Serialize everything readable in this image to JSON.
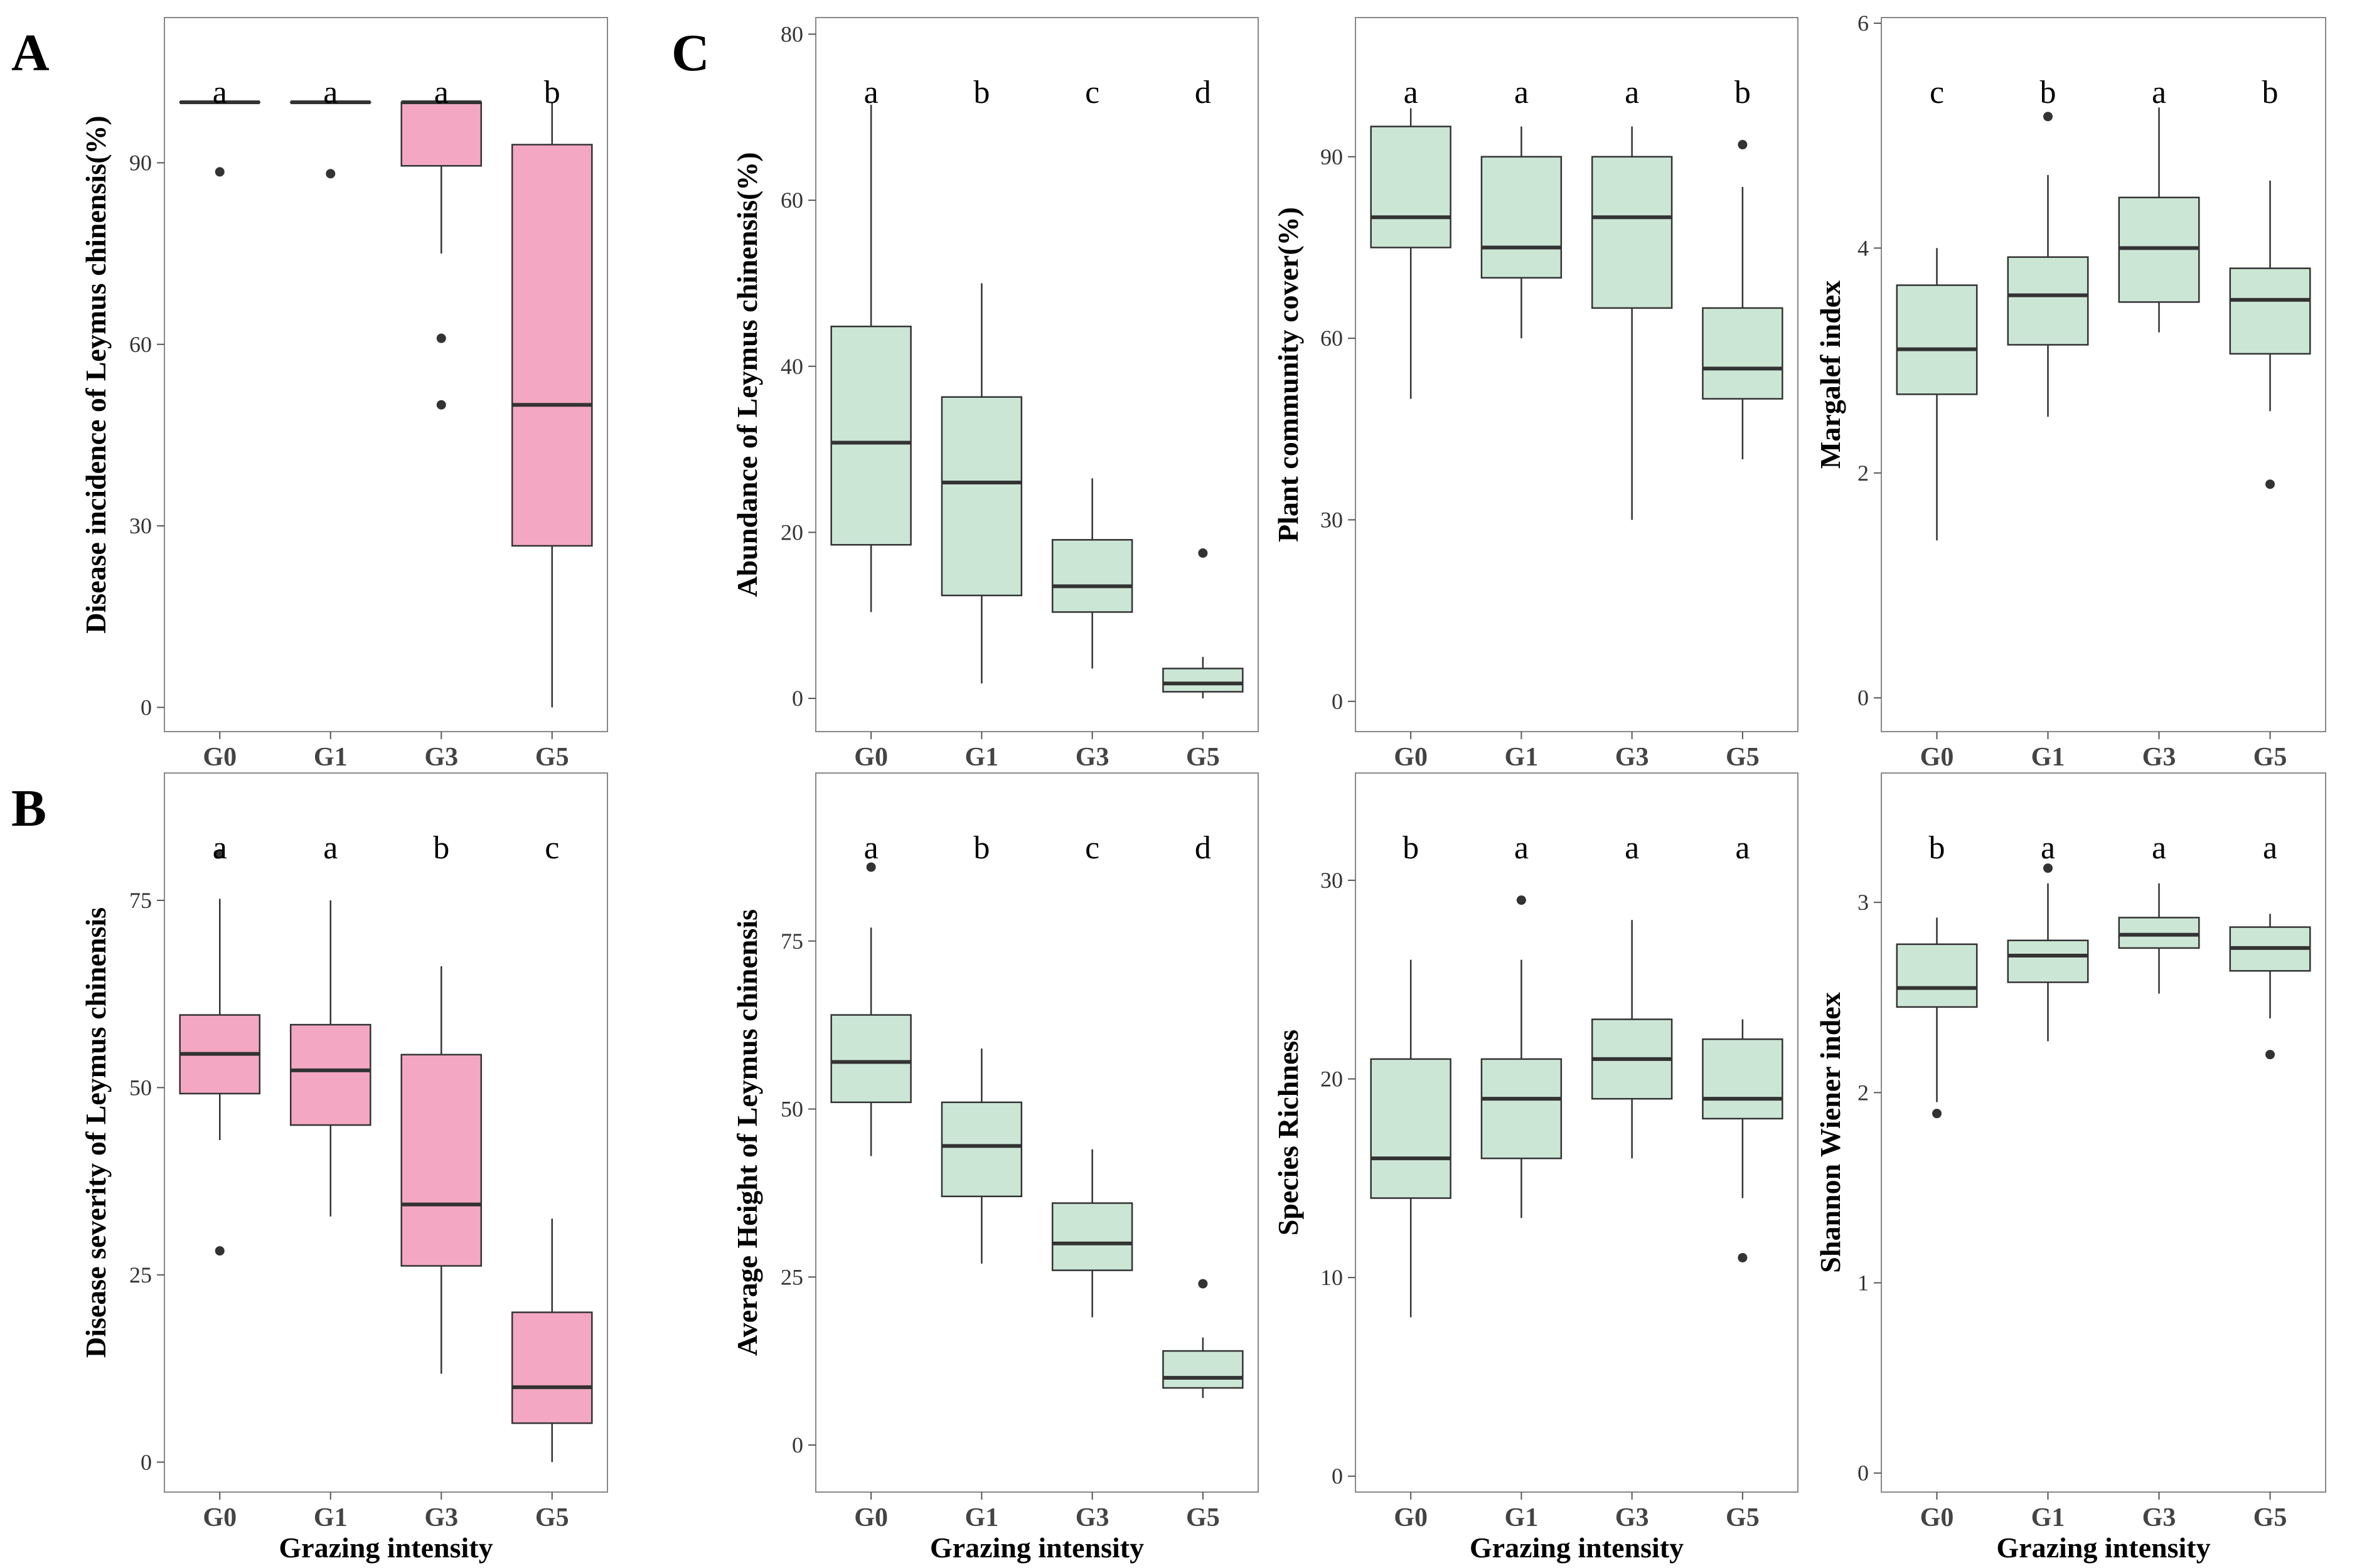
{
  "colors": {
    "pink_fill": "#f4a7c2",
    "green_fill": "#cce6d6",
    "stroke": "#333333",
    "frame": "#888888"
  },
  "panel_letters": [
    "A",
    "B",
    "C"
  ],
  "chart_data": [
    {
      "id": "A",
      "type": "box",
      "fill": "pink",
      "ylabel": "Disease incidence of Leymus chinensis(%)",
      "xlabel": "",
      "categories": [
        "G0",
        "G1",
        "G3",
        "G5"
      ],
      "ylim": [
        -4,
        114
      ],
      "yticks": [
        0,
        30,
        60,
        90
      ],
      "boxes": [
        {
          "q1": 100,
          "median": 100,
          "q3": 100,
          "wlo": 100,
          "whi": 100,
          "outliers": [
            88.5
          ]
        },
        {
          "q1": 100,
          "median": 100,
          "q3": 100,
          "wlo": 100,
          "whi": 100,
          "outliers": [
            88.2
          ]
        },
        {
          "q1": 89.5,
          "median": 100,
          "q3": 100,
          "wlo": 75,
          "whi": 100,
          "outliers": [
            61,
            50
          ]
        },
        {
          "q1": 26.7,
          "median": 50,
          "q3": 93,
          "wlo": 0,
          "whi": 100,
          "outliers": []
        }
      ],
      "letters": [
        "a",
        "a",
        "a",
        "b"
      ]
    },
    {
      "id": "C1",
      "type": "box",
      "fill": "green",
      "ylabel": "Abundance of Leymus chinensis(%)",
      "xlabel": "",
      "categories": [
        "G0",
        "G1",
        "G3",
        "G5"
      ],
      "ylim": [
        -4,
        82
      ],
      "yticks": [
        0,
        20,
        40,
        60,
        80
      ],
      "boxes": [
        {
          "q1": 18.5,
          "median": 30.8,
          "q3": 44.8,
          "wlo": 10.4,
          "whi": 71.5,
          "outliers": []
        },
        {
          "q1": 12.4,
          "median": 26,
          "q3": 36.3,
          "wlo": 1.8,
          "whi": 50,
          "outliers": []
        },
        {
          "q1": 10.4,
          "median": 13.5,
          "q3": 19.1,
          "wlo": 3.6,
          "whi": 26.5,
          "outliers": []
        },
        {
          "q1": 0.8,
          "median": 1.8,
          "q3": 3.6,
          "wlo": 0,
          "whi": 5,
          "outliers": [
            17.5
          ]
        }
      ],
      "letters": [
        "a",
        "b",
        "c",
        "d"
      ]
    },
    {
      "id": "C2",
      "type": "box",
      "fill": "green",
      "ylabel": "Plant community cover(%)",
      "xlabel": "",
      "categories": [
        "G0",
        "G1",
        "G3",
        "G5"
      ],
      "ylim": [
        -5,
        113
      ],
      "yticks": [
        0,
        30,
        60,
        90
      ],
      "boxes": [
        {
          "q1": 75,
          "median": 80,
          "q3": 95,
          "wlo": 50,
          "whi": 98,
          "outliers": []
        },
        {
          "q1": 70,
          "median": 75,
          "q3": 90,
          "wlo": 60,
          "whi": 95,
          "outliers": []
        },
        {
          "q1": 65,
          "median": 80,
          "q3": 90,
          "wlo": 30,
          "whi": 95,
          "outliers": []
        },
        {
          "q1": 50,
          "median": 55,
          "q3": 65,
          "wlo": 40,
          "whi": 85,
          "outliers": [
            92
          ]
        }
      ],
      "letters": [
        "a",
        "a",
        "a",
        "b"
      ]
    },
    {
      "id": "C3",
      "type": "box",
      "fill": "green",
      "ylabel": "Margalef index",
      "xlabel": "",
      "categories": [
        "G0",
        "G1",
        "G3",
        "G5"
      ],
      "ylim": [
        -0.3,
        6.05
      ],
      "yticks": [
        0,
        2,
        4,
        6
      ],
      "boxes": [
        {
          "q1": 2.7,
          "median": 3.1,
          "q3": 3.67,
          "wlo": 1.4,
          "whi": 4.0,
          "outliers": []
        },
        {
          "q1": 3.14,
          "median": 3.58,
          "q3": 3.92,
          "wlo": 2.5,
          "whi": 4.65,
          "outliers": [
            5.17
          ]
        },
        {
          "q1": 3.52,
          "median": 4.0,
          "q3": 4.45,
          "wlo": 3.25,
          "whi": 5.25,
          "outliers": []
        },
        {
          "q1": 3.06,
          "median": 3.54,
          "q3": 3.82,
          "wlo": 2.55,
          "whi": 4.6,
          "outliers": [
            1.9
          ]
        }
      ],
      "letters": [
        "c",
        "b",
        "a",
        "b"
      ]
    },
    {
      "id": "B",
      "type": "box",
      "fill": "pink",
      "ylabel": "Disease severity of Leymus chinensis",
      "xlabel": "Grazing intensity",
      "categories": [
        "G0",
        "G1",
        "G3",
        "G5"
      ],
      "ylim": [
        -4,
        92
      ],
      "yticks": [
        0,
        25,
        50,
        75
      ],
      "boxes": [
        {
          "q1": 49.2,
          "median": 54.5,
          "q3": 59.7,
          "wlo": 43,
          "whi": 75.2,
          "outliers": [
            81.2,
            28.2
          ]
        },
        {
          "q1": 45,
          "median": 52.3,
          "q3": 58.4,
          "wlo": 32.8,
          "whi": 75,
          "outliers": []
        },
        {
          "q1": 26.2,
          "median": 34.4,
          "q3": 54.4,
          "wlo": 11.8,
          "whi": 66.2,
          "outliers": []
        },
        {
          "q1": 5.2,
          "median": 10,
          "q3": 20,
          "wlo": 0,
          "whi": 32.5,
          "outliers": []
        }
      ],
      "letters": [
        "a",
        "a",
        "b",
        "c"
      ]
    },
    {
      "id": "C4",
      "type": "box",
      "fill": "green",
      "ylabel": "Average Height of Leymus chinensis",
      "xlabel": "Grazing intensity",
      "categories": [
        "G0",
        "G1",
        "G3",
        "G5"
      ],
      "ylim": [
        -7,
        100
      ],
      "yticks": [
        0,
        25,
        50,
        75
      ],
      "boxes": [
        {
          "q1": 51,
          "median": 57,
          "q3": 64,
          "wlo": 43,
          "whi": 77,
          "outliers": [
            86
          ]
        },
        {
          "q1": 37,
          "median": 44.5,
          "q3": 51,
          "wlo": 27,
          "whi": 59,
          "outliers": []
        },
        {
          "q1": 26,
          "median": 30,
          "q3": 36,
          "wlo": 19,
          "whi": 44,
          "outliers": []
        },
        {
          "q1": 8.5,
          "median": 10,
          "q3": 14,
          "wlo": 7,
          "whi": 16,
          "outliers": [
            24
          ]
        }
      ],
      "letters": [
        "a",
        "b",
        "c",
        "d"
      ]
    },
    {
      "id": "C5",
      "type": "box",
      "fill": "green",
      "ylabel": "Species Richness",
      "xlabel": "Grazing intensity",
      "categories": [
        "G0",
        "G1",
        "G3",
        "G5"
      ],
      "ylim": [
        -0.8,
        35.4
      ],
      "yticks": [
        0,
        10,
        20,
        30
      ],
      "boxes": [
        {
          "q1": 14,
          "median": 16,
          "q3": 21,
          "wlo": 8,
          "whi": 26,
          "outliers": []
        },
        {
          "q1": 16,
          "median": 19,
          "q3": 21,
          "wlo": 13,
          "whi": 26,
          "outliers": [
            29
          ]
        },
        {
          "q1": 19,
          "median": 21,
          "q3": 23,
          "wlo": 16,
          "whi": 28,
          "outliers": []
        },
        {
          "q1": 18,
          "median": 19,
          "q3": 22,
          "wlo": 14,
          "whi": 23,
          "outliers": [
            11
          ]
        }
      ],
      "letters": [
        "b",
        "a",
        "a",
        "a"
      ]
    },
    {
      "id": "C6",
      "type": "box",
      "fill": "green",
      "ylabel": "Shannon Wiener index",
      "xlabel": "Grazing intensity",
      "categories": [
        "G0",
        "G1",
        "G3",
        "G5"
      ],
      "ylim": [
        -0.1,
        3.68
      ],
      "yticks": [
        0,
        1,
        2,
        3
      ],
      "boxes": [
        {
          "q1": 2.45,
          "median": 2.55,
          "q3": 2.78,
          "wlo": 1.95,
          "whi": 2.92,
          "outliers": [
            1.89
          ]
        },
        {
          "q1": 2.58,
          "median": 2.72,
          "q3": 2.8,
          "wlo": 2.27,
          "whi": 3.1,
          "outliers": [
            3.18
          ]
        },
        {
          "q1": 2.76,
          "median": 2.83,
          "q3": 2.92,
          "wlo": 2.52,
          "whi": 3.1,
          "outliers": []
        },
        {
          "q1": 2.64,
          "median": 2.76,
          "q3": 2.87,
          "wlo": 2.39,
          "whi": 2.94,
          "outliers": [
            2.2
          ]
        }
      ],
      "letters": [
        "b",
        "a",
        "a",
        "a"
      ]
    }
  ]
}
